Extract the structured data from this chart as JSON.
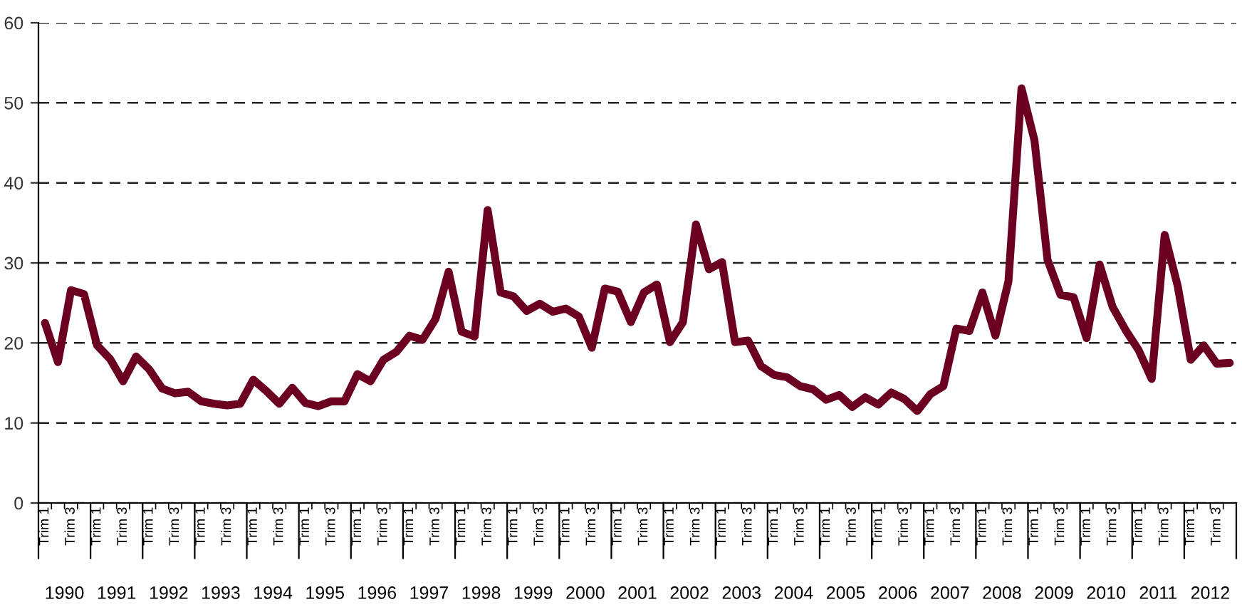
{
  "chart_data": {
    "type": "line",
    "categories": [
      "Trim 1",
      null,
      "Trim 3",
      null,
      "Trim 1",
      null,
      "Trim 3",
      null,
      "Trim 1",
      null,
      "Trim 3",
      null,
      "Trim 1",
      null,
      "Trim 3",
      null,
      "Trim 1",
      null,
      "Trim 3",
      null,
      "Trim 1",
      null,
      "Trim 3",
      null,
      "Trim 1",
      null,
      "Trim 3",
      null,
      "Trim 1",
      null,
      "Trim 3",
      null,
      "Trim 1",
      null,
      "Trim 3",
      null,
      "Trim 1",
      null,
      "Trim 3",
      null,
      "Trim 1",
      null,
      "Trim 3",
      null,
      "Trim 1",
      null,
      "Trim 3",
      null,
      "Trim 1",
      null,
      "Trim 3",
      null,
      "Trim 1",
      null,
      "Trim 3",
      null,
      "Trim 1",
      null,
      "Trim 3",
      null,
      "Trim 1",
      null,
      "Trim 3",
      null,
      "Trim 1",
      null,
      "Trim 3",
      null,
      "Trim 1",
      null,
      "Trim 3",
      null,
      "Trim 1",
      null,
      "Trim 3",
      null,
      "Trim 1",
      null,
      "Trim 3",
      null,
      "Trim 1",
      null,
      "Trim 3",
      null,
      "Trim 1",
      null,
      "Trim 3",
      null,
      "Trim 1",
      null,
      "Trim 3",
      null
    ],
    "series": [
      {
        "color": "#6b0020",
        "values": [
          22.5,
          17.6,
          26.6,
          26.1,
          19.7,
          18.0,
          15.2,
          18.3,
          16.7,
          14.3,
          13.7,
          13.9,
          12.7,
          12.4,
          12.2,
          12.4,
          15.4,
          14.0,
          12.4,
          14.4,
          12.5,
          12.1,
          12.7,
          12.7,
          16.1,
          15.2,
          17.9,
          18.9,
          20.9,
          20.4,
          23.0,
          28.9,
          21.4,
          20.8,
          36.6,
          26.3,
          25.8,
          24.0,
          24.9,
          23.9,
          24.3,
          23.3,
          19.4,
          26.8,
          26.4,
          22.6,
          26.3,
          27.3,
          20.1,
          22.6,
          34.8,
          29.2,
          30.1,
          20.1,
          20.3,
          17.1,
          16.0,
          15.7,
          14.6,
          14.2,
          12.9,
          13.5,
          12.0,
          13.2,
          12.3,
          13.8,
          13.0,
          11.5,
          13.6,
          14.6,
          21.8,
          21.5,
          26.3,
          20.9,
          27.7,
          51.8,
          45.3,
          30.4,
          26.0,
          25.7,
          20.6,
          29.8,
          24.5,
          21.6,
          19.1,
          15.5,
          33.5,
          27.1,
          17.9,
          19.7,
          17.4,
          17.5
        ]
      }
    ],
    "annotations": [
      "1990",
      "1991",
      "1992",
      "1993",
      "1994",
      "1995",
      "1996",
      "1997",
      "1998",
      "1999",
      "2000",
      "2001",
      "2002",
      "2003",
      "2004",
      "2005",
      "2006",
      "2007",
      "2008",
      "2009",
      "2010",
      "2011",
      "2012"
    ],
    "ylim": [
      0,
      60
    ],
    "yticks": [
      0,
      10,
      20,
      30,
      40,
      50,
      60
    ],
    "grid": "y",
    "marker": "none",
    "line_style": "solid",
    "legend": false
  }
}
